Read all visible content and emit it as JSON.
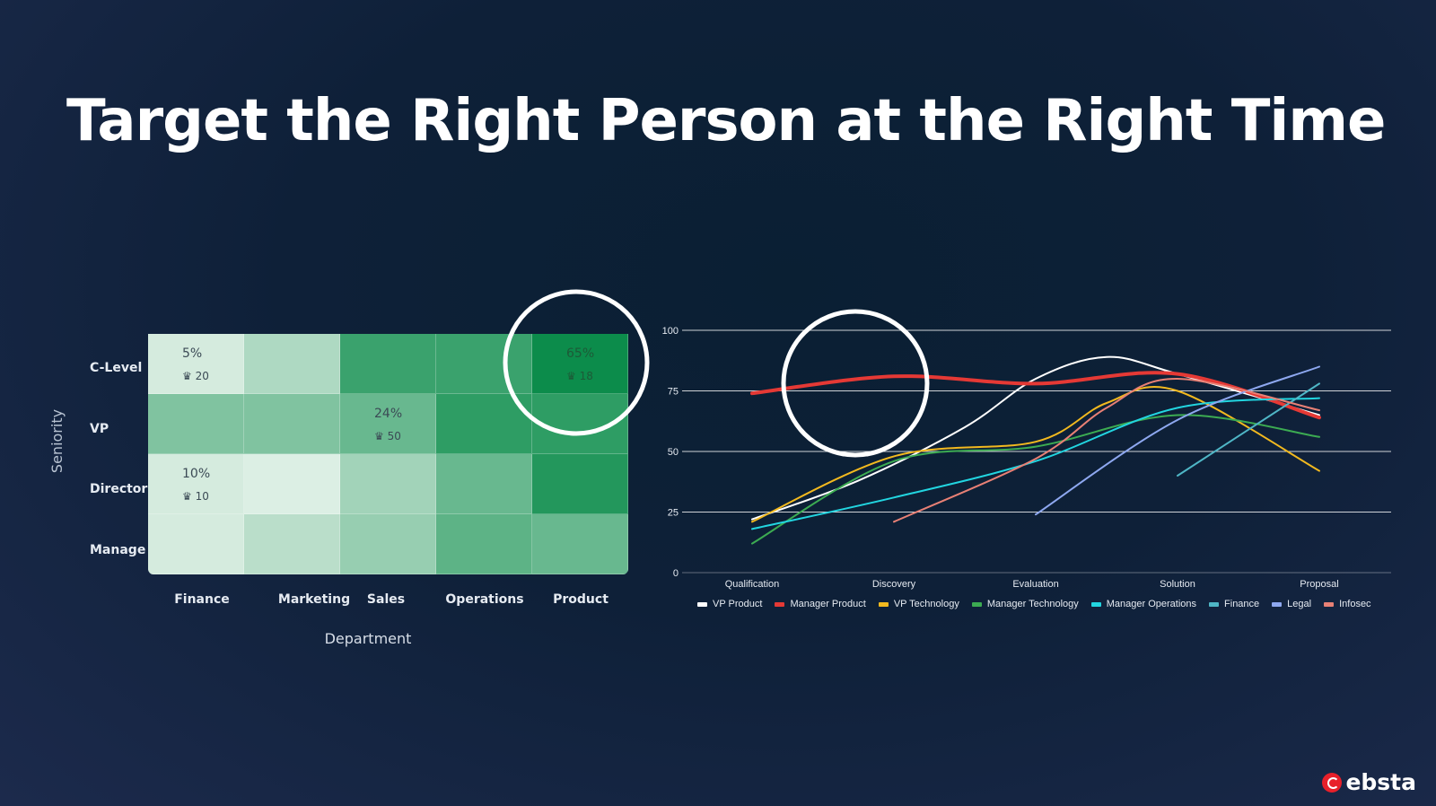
{
  "title": "Target the Right Person at the Right Time",
  "brand": {
    "name": "ebsta",
    "icon": "ebsta-logo-icon",
    "color": "#e8202a"
  },
  "heatmap": {
    "ylabel": "Seniority",
    "xlabel": "Department",
    "rows": [
      "C-Level",
      "VP",
      "Director",
      "Manage"
    ],
    "columns": [
      "Finance",
      "Marketing",
      "Sales",
      "Operations",
      "Product"
    ],
    "intensity": [
      [
        0.08,
        0.25,
        0.75,
        0.75,
        0.95
      ],
      [
        0.45,
        0.45,
        0.55,
        0.8,
        0.8
      ],
      [
        0.08,
        0.05,
        0.3,
        0.55,
        0.85
      ],
      [
        0.08,
        0.2,
        0.35,
        0.6,
        0.55
      ]
    ],
    "annotations": [
      {
        "row": 0,
        "col": 0,
        "pct": "5%",
        "count": "20"
      },
      {
        "row": 0,
        "col": 4,
        "pct": "65%",
        "count": "18"
      },
      {
        "row": 1,
        "col": 2,
        "pct": "24%",
        "count": "50"
      },
      {
        "row": 2,
        "col": 0,
        "pct": "10%",
        "count": "10"
      }
    ],
    "count_icon": "crown-icon"
  },
  "chart_data": {
    "type": "line",
    "categories": [
      "Qualification",
      "Discovery",
      "Evaluation",
      "Solution",
      "Proposal"
    ],
    "ylim": [
      0,
      100
    ],
    "yticks": [
      0,
      25,
      50,
      75,
      100
    ],
    "grid": true,
    "legend_position": "bottom",
    "series": [
      {
        "name": "VP Product",
        "color": "#ffffff",
        "width": 2,
        "x": [
          0,
          0.75,
          1.5,
          2,
          2.5,
          3,
          4
        ],
        "y": [
          22,
          38,
          60,
          80,
          89,
          82,
          65
        ]
      },
      {
        "name": "Manager Product",
        "color": "#e53935",
        "width": 4,
        "x": [
          0,
          1,
          2,
          3,
          4
        ],
        "y": [
          74,
          81,
          78,
          82,
          64
        ]
      },
      {
        "name": "VP Technology",
        "color": "#f2b91f",
        "width": 2,
        "x": [
          0,
          1,
          2,
          2.5,
          3,
          4
        ],
        "y": [
          21,
          48,
          54,
          70,
          75,
          42
        ]
      },
      {
        "name": "Manager Technology",
        "color": "#3cab52",
        "width": 2,
        "x": [
          0,
          1,
          2,
          3,
          4
        ],
        "y": [
          12,
          46,
          52,
          65,
          56
        ]
      },
      {
        "name": "Manager Operations",
        "color": "#22d5e0",
        "width": 2,
        "x": [
          0,
          1,
          2,
          3,
          4
        ],
        "y": [
          18,
          31,
          46,
          68,
          72
        ]
      },
      {
        "name": "Finance",
        "color": "#4fb6c6",
        "width": 2,
        "x": [
          3,
          4
        ],
        "y": [
          40,
          78
        ]
      },
      {
        "name": "Legal",
        "color": "#8ea8f0",
        "width": 2,
        "x": [
          2,
          3,
          4
        ],
        "y": [
          24,
          63,
          85
        ]
      },
      {
        "name": "Infosec",
        "color": "#e88075",
        "width": 2,
        "x": [
          1,
          2,
          2.5,
          3,
          4
        ],
        "y": [
          21,
          47,
          68,
          80,
          67
        ]
      }
    ]
  }
}
